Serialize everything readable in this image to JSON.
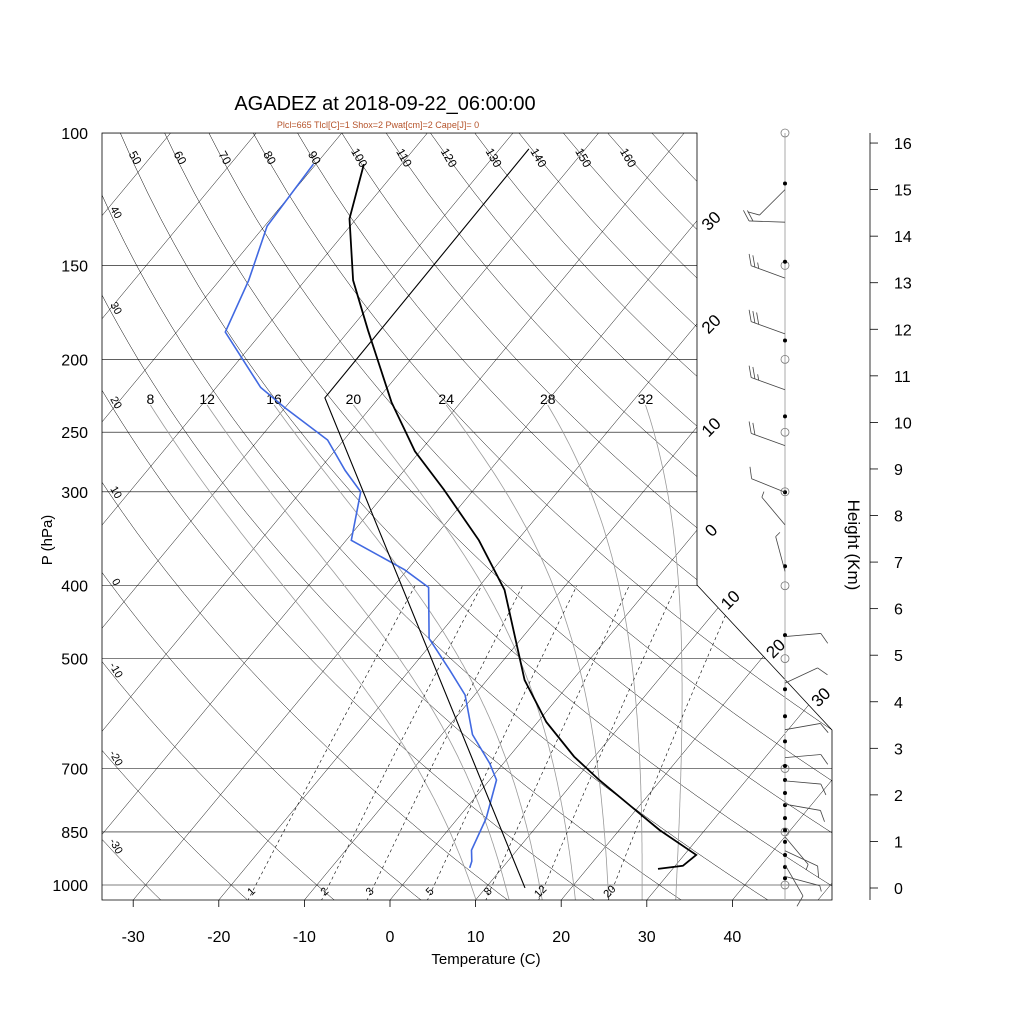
{
  "title": "AGADEZ at 2018-09-22_06:00:00",
  "subtitle": "Plcl=665 Tlcl[C]=1 Shox=2 Pwat[cm]=2 Cape[J]= 0",
  "colors": {
    "temperature": "#000000",
    "dewpoint": "#4169e1",
    "parcel": "#000000",
    "subtitle": "#b5532a",
    "moist_adiabat": "#9a9a9a",
    "grid": "#000000"
  },
  "chart_data": {
    "type": "line",
    "title": "AGADEZ at 2018-09-22_06:00:00",
    "xlabel": "Temperature (C)",
    "ylabel": "P (hPa)",
    "y2label": "Height (Km)",
    "xlim": [
      -35,
      51
    ],
    "ylim": [
      1050,
      100
    ],
    "y_scale": "log",
    "pressure_ticks": [
      100,
      150,
      200,
      250,
      300,
      400,
      500,
      700,
      850,
      1000
    ],
    "temperature_ticks": [
      -30,
      -20,
      -10,
      0,
      10,
      20,
      30,
      40
    ],
    "height_ticks_km": [
      0,
      1,
      2,
      3,
      4,
      5,
      6,
      7,
      8,
      9,
      10,
      11,
      12,
      13,
      14,
      15,
      16
    ],
    "dry_adiabats_top": [
      50,
      60,
      70,
      80,
      90,
      100,
      110,
      120,
      130,
      140,
      150,
      160
    ],
    "dry_adiabats_left": [
      40,
      30,
      20,
      10,
      0,
      -10,
      -20,
      -30
    ],
    "moist_adiabats": [
      8,
      12,
      16,
      20,
      24,
      28,
      32
    ],
    "mixing_ratios": [
      1,
      2,
      3,
      5,
      8,
      12,
      20
    ],
    "isotherm_labels_right": [
      {
        "t": -30,
        "text": "30"
      },
      {
        "t": -20,
        "text": "20"
      },
      {
        "t": -10,
        "text": "10"
      },
      {
        "t": 0,
        "text": "0"
      }
    ],
    "isotherm_labels_diag": [
      {
        "t": 10,
        "text": "10"
      },
      {
        "t": 20,
        "text": "20"
      },
      {
        "t": 30,
        "text": "30"
      }
    ],
    "series": [
      {
        "name": "Temperature",
        "points": [
          [
            952,
            28.3
          ],
          [
            943,
            30.9
          ],
          [
            912,
            31.4
          ],
          [
            845,
            24.7
          ],
          [
            725,
            12.8
          ],
          [
            675,
            7.6
          ],
          [
            607,
            1.0
          ],
          [
            534,
            -5.6
          ],
          [
            487,
            -9.3
          ],
          [
            405,
            -16.7
          ],
          [
            348,
            -24.5
          ],
          [
            298,
            -33.5
          ],
          [
            265,
            -40.6
          ],
          [
            228,
            -48.1
          ],
          [
            183,
            -57.8
          ],
          [
            157,
            -64.4
          ],
          [
            130,
            -70.8
          ],
          [
            110,
            -74.4
          ]
        ]
      },
      {
        "name": "Dewpoint",
        "points": [
          [
            949,
            6.2
          ],
          [
            930,
            5.8
          ],
          [
            899,
            4.7
          ],
          [
            815,
            3.3
          ],
          [
            725,
            0.8
          ],
          [
            689,
            -1.6
          ],
          [
            631,
            -6.4
          ],
          [
            559,
            -11.1
          ],
          [
            518,
            -15.3
          ],
          [
            470,
            -20.8
          ],
          [
            402,
            -25.8
          ],
          [
            381,
            -30.3
          ],
          [
            348,
            -39.4
          ],
          [
            300,
            -43.0
          ],
          [
            281,
            -46.9
          ],
          [
            256,
            -51.9
          ],
          [
            232,
            -60.0
          ],
          [
            218,
            -64.8
          ],
          [
            184,
            -74.3
          ],
          [
            157,
            -76.6
          ],
          [
            133,
            -79.7
          ],
          [
            110,
            -80.3
          ]
        ]
      },
      {
        "name": "Parcel",
        "points": [
          [
            1009,
            14.6
          ],
          [
            225,
            -56.3
          ],
          [
            105,
            -56.6
          ]
        ]
      }
    ],
    "winds": [
      {
        "h": 15.0,
        "dir": 225,
        "spd": 10
      },
      {
        "h": 14.3,
        "dir": 272,
        "spd": 20
      },
      {
        "h": 13.1,
        "dir": 290,
        "spd": 25
      },
      {
        "h": 11.9,
        "dir": 290,
        "spd": 30
      },
      {
        "h": 10.7,
        "dir": 290,
        "spd": 25
      },
      {
        "h": 9.5,
        "dir": 290,
        "spd": 20
      },
      {
        "h": 8.5,
        "dir": 292,
        "spd": 10
      },
      {
        "h": 7.8,
        "dir": 320,
        "spd": 5
      },
      {
        "h": 6.8,
        "dir": 345,
        "spd": 5
      },
      {
        "h": 5.4,
        "dir": 85,
        "spd": 10
      },
      {
        "h": 4.4,
        "dir": 65,
        "spd": 10
      },
      {
        "h": 3.4,
        "dir": 80,
        "spd": 10
      },
      {
        "h": 2.8,
        "dir": 85,
        "spd": 10
      },
      {
        "h": 2.3,
        "dir": 95,
        "spd": 10
      },
      {
        "h": 1.8,
        "dir": 100,
        "spd": 10
      },
      {
        "h": 1.1,
        "dir": 140,
        "spd": 5
      },
      {
        "h": 0.8,
        "dir": 115,
        "spd": 10
      },
      {
        "h": 0.5,
        "dir": 150,
        "spd": 10
      },
      {
        "h": 0.25,
        "dir": 105,
        "spd": 5
      }
    ],
    "obs_heights_km": [
      15.13,
      13.45,
      11.76,
      10.13,
      8.5,
      6.91,
      5.43,
      4.27,
      3.69,
      3.15,
      2.62,
      2.32,
      2.04,
      1.78,
      1.5,
      1.24,
      0.99,
      0.71,
      0.45,
      0.21
    ],
    "mandatory_levels_hpa": [
      100,
      150,
      200,
      250,
      300,
      400,
      500,
      700,
      850,
      1000
    ]
  }
}
